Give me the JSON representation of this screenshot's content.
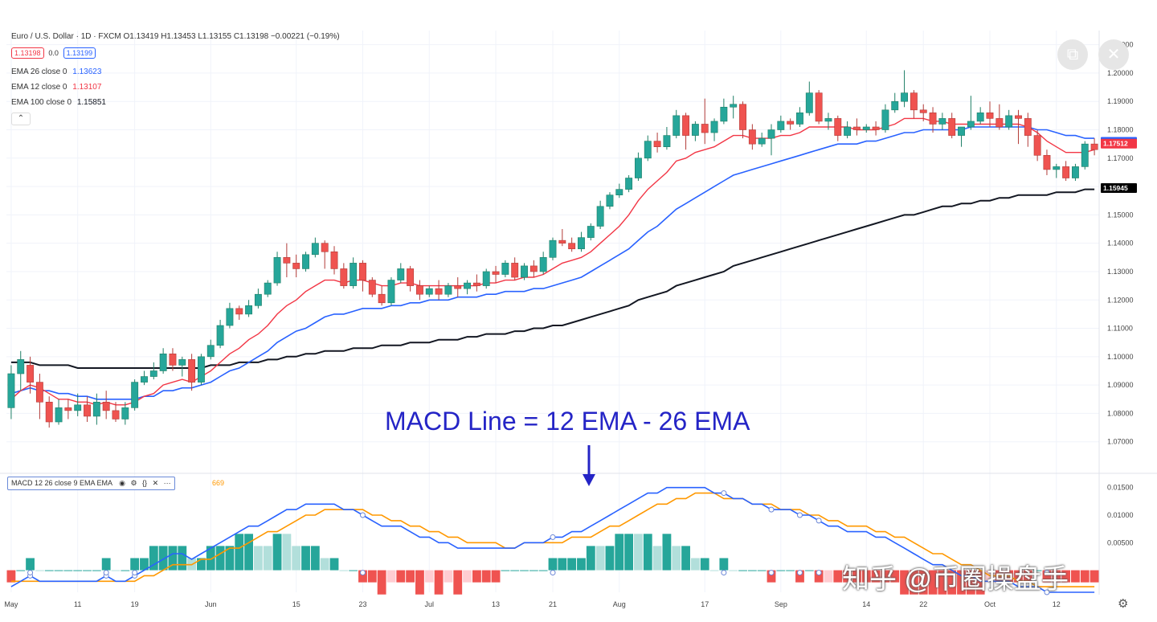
{
  "header": {
    "symbol": "Euro / U.S. Dollar · 1D · FXCM",
    "ohlc": "O1.13419 H1.13453 L1.13155 C1.13198 −0.00221 (−0.19%)",
    "bid": "1.13198",
    "spread": "0.0",
    "ask": "1.13199"
  },
  "indicators": [
    {
      "label": "EMA 26 close 0",
      "value": "1.13623",
      "color": "#2962ff"
    },
    {
      "label": "EMA 12 close 0",
      "value": "1.13107",
      "color": "#f23645"
    },
    {
      "label": "EMA 100 close 0",
      "value": "1.15851",
      "color": "#131722"
    }
  ],
  "collapse_icon": "chevron-up-icon",
  "macd_legend": {
    "label": "MACD 12 26 close 9 EMA EMA",
    "partial_value": "669",
    "icons": [
      "eye-icon",
      "gear-icon",
      "braces-icon",
      "close-icon",
      "more-icon"
    ]
  },
  "annotation": "MACD Line = 12 EMA - 26 EMA",
  "watermark": "知乎 @币圈操盘手",
  "controls": [
    "popout-icon",
    "close-icon"
  ],
  "chart_data": {
    "type": "candlestick",
    "price_axis": {
      "ticks": [
        "1.21000",
        "1.20000",
        "1.19000",
        "1.18000",
        "1.17000",
        "1.16000",
        "1.15000",
        "1.14000",
        "1.13000",
        "1.12000",
        "1.11000",
        "1.10000",
        "1.09000",
        "1.08000",
        "1.07000"
      ],
      "range": [
        1.06,
        1.215
      ]
    },
    "price_labels": [
      {
        "text": "1.17577",
        "value": 1.17577,
        "color": "#2962ff"
      },
      {
        "text": "1.17512",
        "value": 1.17512,
        "color": "#f23645"
      },
      {
        "text": "1.15945",
        "value": 1.15945,
        "color": "#000000"
      }
    ],
    "macd_axis": {
      "ticks": [
        "0.01500",
        "0.01000",
        "0.00500"
      ],
      "range": [
        -0.004,
        0.017
      ]
    },
    "x_labels": [
      "May",
      "11",
      "19",
      "Jun",
      "15",
      "23",
      "Jul",
      "13",
      "21",
      "Aug",
      "17",
      "Sep",
      "14",
      "22",
      "Oct",
      "12"
    ],
    "x_label_index": [
      0,
      7,
      13,
      21,
      30,
      37,
      44,
      51,
      57,
      64,
      73,
      81,
      90,
      96,
      103,
      110
    ],
    "candles": [
      [
        1.082,
        1.094,
        1.078,
        1.097
      ],
      [
        1.094,
        1.099,
        1.088,
        1.102
      ],
      [
        1.097,
        1.091,
        1.087,
        1.1
      ],
      [
        1.091,
        1.084,
        1.078,
        1.094
      ],
      [
        1.084,
        1.077,
        1.075,
        1.086
      ],
      [
        1.077,
        1.082,
        1.076,
        1.085
      ],
      [
        1.082,
        1.081,
        1.078,
        1.085
      ],
      [
        1.081,
        1.083,
        1.079,
        1.087
      ],
      [
        1.083,
        1.079,
        1.077,
        1.086
      ],
      [
        1.079,
        1.084,
        1.076,
        1.087
      ],
      [
        1.084,
        1.081,
        1.078,
        1.088
      ],
      [
        1.081,
        1.078,
        1.077,
        1.084
      ],
      [
        1.078,
        1.082,
        1.076,
        1.084
      ],
      [
        1.082,
        1.091,
        1.081,
        1.092
      ],
      [
        1.091,
        1.093,
        1.09,
        1.095
      ],
      [
        1.093,
        1.095,
        1.092,
        1.098
      ],
      [
        1.095,
        1.101,
        1.094,
        1.103
      ],
      [
        1.101,
        1.097,
        1.095,
        1.103
      ],
      [
        1.097,
        1.099,
        1.093,
        1.1
      ],
      [
        1.099,
        1.091,
        1.088,
        1.101
      ],
      [
        1.091,
        1.1,
        1.09,
        1.101
      ],
      [
        1.1,
        1.104,
        1.099,
        1.106
      ],
      [
        1.104,
        1.111,
        1.103,
        1.113
      ],
      [
        1.111,
        1.117,
        1.11,
        1.119
      ],
      [
        1.117,
        1.115,
        1.113,
        1.118
      ],
      [
        1.115,
        1.118,
        1.114,
        1.12
      ],
      [
        1.118,
        1.122,
        1.117,
        1.124
      ],
      [
        1.122,
        1.126,
        1.121,
        1.127
      ],
      [
        1.126,
        1.135,
        1.125,
        1.137
      ],
      [
        1.135,
        1.133,
        1.128,
        1.14
      ],
      [
        1.133,
        1.131,
        1.128,
        1.136
      ],
      [
        1.131,
        1.136,
        1.13,
        1.137
      ],
      [
        1.136,
        1.14,
        1.135,
        1.142
      ],
      [
        1.14,
        1.137,
        1.131,
        1.141
      ],
      [
        1.137,
        1.131,
        1.129,
        1.139
      ],
      [
        1.131,
        1.125,
        1.124,
        1.133
      ],
      [
        1.125,
        1.133,
        1.124,
        1.135
      ],
      [
        1.133,
        1.127,
        1.123,
        1.134
      ],
      [
        1.127,
        1.122,
        1.121,
        1.128
      ],
      [
        1.122,
        1.119,
        1.118,
        1.125
      ],
      [
        1.119,
        1.127,
        1.118,
        1.128
      ],
      [
        1.127,
        1.131,
        1.126,
        1.133
      ],
      [
        1.131,
        1.125,
        1.123,
        1.132
      ],
      [
        1.125,
        1.122,
        1.12,
        1.127
      ],
      [
        1.122,
        1.124,
        1.121,
        1.125
      ],
      [
        1.124,
        1.122,
        1.12,
        1.127
      ],
      [
        1.122,
        1.125,
        1.121,
        1.126
      ],
      [
        1.125,
        1.124,
        1.121,
        1.128
      ],
      [
        1.124,
        1.126,
        1.122,
        1.127
      ],
      [
        1.126,
        1.125,
        1.123,
        1.129
      ],
      [
        1.125,
        1.13,
        1.124,
        1.131
      ],
      [
        1.13,
        1.129,
        1.126,
        1.132
      ],
      [
        1.129,
        1.133,
        1.128,
        1.134
      ],
      [
        1.133,
        1.128,
        1.127,
        1.135
      ],
      [
        1.128,
        1.132,
        1.127,
        1.133
      ],
      [
        1.132,
        1.13,
        1.128,
        1.134
      ],
      [
        1.13,
        1.135,
        1.129,
        1.137
      ],
      [
        1.135,
        1.141,
        1.134,
        1.142
      ],
      [
        1.141,
        1.14,
        1.139,
        1.145
      ],
      [
        1.14,
        1.138,
        1.137,
        1.142
      ],
      [
        1.138,
        1.142,
        1.137,
        1.144
      ],
      [
        1.142,
        1.146,
        1.141,
        1.147
      ],
      [
        1.146,
        1.153,
        1.145,
        1.155
      ],
      [
        1.153,
        1.157,
        1.152,
        1.158
      ],
      [
        1.157,
        1.159,
        1.156,
        1.161
      ],
      [
        1.159,
        1.163,
        1.158,
        1.164
      ],
      [
        1.163,
        1.17,
        1.162,
        1.172
      ],
      [
        1.17,
        1.176,
        1.169,
        1.178
      ],
      [
        1.176,
        1.174,
        1.172,
        1.179
      ],
      [
        1.174,
        1.178,
        1.173,
        1.181
      ],
      [
        1.178,
        1.185,
        1.177,
        1.187
      ],
      [
        1.185,
        1.178,
        1.173,
        1.186
      ],
      [
        1.178,
        1.182,
        1.176,
        1.183
      ],
      [
        1.182,
        1.179,
        1.175,
        1.191
      ],
      [
        1.179,
        1.183,
        1.176,
        1.184
      ],
      [
        1.183,
        1.188,
        1.182,
        1.191
      ],
      [
        1.188,
        1.189,
        1.184,
        1.192
      ],
      [
        1.189,
        1.18,
        1.177,
        1.19
      ],
      [
        1.18,
        1.175,
        1.173,
        1.182
      ],
      [
        1.175,
        1.177,
        1.174,
        1.179
      ],
      [
        1.177,
        1.18,
        1.171,
        1.182
      ],
      [
        1.18,
        1.183,
        1.179,
        1.185
      ],
      [
        1.183,
        1.182,
        1.18,
        1.184
      ],
      [
        1.182,
        1.186,
        1.181,
        1.188
      ],
      [
        1.186,
        1.193,
        1.185,
        1.197
      ],
      [
        1.193,
        1.183,
        1.182,
        1.194
      ],
      [
        1.183,
        1.184,
        1.18,
        1.186
      ],
      [
        1.184,
        1.178,
        1.176,
        1.185
      ],
      [
        1.178,
        1.181,
        1.177,
        1.183
      ],
      [
        1.181,
        1.18,
        1.178,
        1.184
      ],
      [
        1.18,
        1.181,
        1.179,
        1.182
      ],
      [
        1.181,
        1.18,
        1.178,
        1.183
      ],
      [
        1.18,
        1.187,
        1.179,
        1.189
      ],
      [
        1.187,
        1.19,
        1.186,
        1.193
      ],
      [
        1.19,
        1.193,
        1.188,
        1.201
      ],
      [
        1.193,
        1.187,
        1.184,
        1.194
      ],
      [
        1.187,
        1.186,
        1.183,
        1.189
      ],
      [
        1.186,
        1.182,
        1.179,
        1.188
      ],
      [
        1.182,
        1.184,
        1.18,
        1.186
      ],
      [
        1.184,
        1.178,
        1.177,
        1.186
      ],
      [
        1.178,
        1.181,
        1.174,
        1.181
      ],
      [
        1.181,
        1.183,
        1.18,
        1.192
      ],
      [
        1.183,
        1.186,
        1.182,
        1.188
      ],
      [
        1.186,
        1.184,
        1.181,
        1.19
      ],
      [
        1.184,
        1.181,
        1.18,
        1.189
      ],
      [
        1.181,
        1.185,
        1.18,
        1.187
      ],
      [
        1.185,
        1.184,
        1.175,
        1.187
      ],
      [
        1.184,
        1.178,
        1.174,
        1.186
      ],
      [
        1.178,
        1.171,
        1.169,
        1.18
      ],
      [
        1.171,
        1.166,
        1.164,
        1.173
      ],
      [
        1.166,
        1.167,
        1.163,
        1.168
      ],
      [
        1.167,
        1.163,
        1.162,
        1.169
      ],
      [
        1.163,
        1.167,
        1.162,
        1.168
      ],
      [
        1.167,
        1.175,
        1.166,
        1.176
      ],
      [
        1.175,
        1.173,
        1.171,
        1.177
      ]
    ],
    "ema12": [
      1.085,
      1.088,
      1.09,
      1.089,
      1.087,
      1.085,
      1.085,
      1.084,
      1.084,
      1.083,
      1.084,
      1.083,
      1.083,
      1.084,
      1.086,
      1.087,
      1.09,
      1.091,
      1.092,
      1.091,
      1.093,
      1.095,
      1.098,
      1.101,
      1.103,
      1.106,
      1.108,
      1.111,
      1.115,
      1.118,
      1.12,
      1.123,
      1.125,
      1.127,
      1.127,
      1.126,
      1.127,
      1.127,
      1.126,
      1.125,
      1.125,
      1.126,
      1.126,
      1.125,
      1.125,
      1.125,
      1.125,
      1.125,
      1.125,
      1.125,
      1.126,
      1.126,
      1.127,
      1.127,
      1.128,
      1.128,
      1.129,
      1.131,
      1.133,
      1.134,
      1.135,
      1.137,
      1.14,
      1.143,
      1.146,
      1.15,
      1.155,
      1.159,
      1.162,
      1.165,
      1.169,
      1.17,
      1.172,
      1.173,
      1.174,
      1.176,
      1.178,
      1.178,
      1.177,
      1.177,
      1.177,
      1.178,
      1.178,
      1.179,
      1.181,
      1.181,
      1.181,
      1.181,
      1.181,
      1.18,
      1.18,
      1.18,
      1.181,
      1.182,
      1.184,
      1.184,
      1.184,
      1.183,
      1.183,
      1.182,
      1.182,
      1.182,
      1.182,
      1.182,
      1.182,
      1.182,
      1.182,
      1.181,
      1.179,
      1.176,
      1.174,
      1.172,
      1.172,
      1.172,
      1.173
    ],
    "ema26": [
      1.087,
      1.088,
      1.089,
      1.088,
      1.088,
      1.087,
      1.087,
      1.086,
      1.086,
      1.085,
      1.085,
      1.085,
      1.085,
      1.085,
      1.086,
      1.086,
      1.088,
      1.088,
      1.089,
      1.089,
      1.09,
      1.091,
      1.093,
      1.095,
      1.096,
      1.098,
      1.1,
      1.102,
      1.105,
      1.107,
      1.109,
      1.11,
      1.112,
      1.114,
      1.115,
      1.115,
      1.116,
      1.117,
      1.117,
      1.117,
      1.118,
      1.118,
      1.119,
      1.119,
      1.12,
      1.12,
      1.12,
      1.121,
      1.121,
      1.121,
      1.122,
      1.122,
      1.123,
      1.123,
      1.123,
      1.124,
      1.124,
      1.125,
      1.126,
      1.127,
      1.128,
      1.13,
      1.132,
      1.134,
      1.136,
      1.138,
      1.141,
      1.144,
      1.146,
      1.149,
      1.152,
      1.154,
      1.156,
      1.158,
      1.16,
      1.162,
      1.164,
      1.165,
      1.166,
      1.167,
      1.168,
      1.169,
      1.17,
      1.171,
      1.172,
      1.173,
      1.174,
      1.175,
      1.175,
      1.175,
      1.176,
      1.176,
      1.177,
      1.178,
      1.179,
      1.179,
      1.18,
      1.18,
      1.18,
      1.18,
      1.18,
      1.181,
      1.181,
      1.181,
      1.181,
      1.181,
      1.181,
      1.181,
      1.18,
      1.18,
      1.179,
      1.178,
      1.178,
      1.177,
      1.177
    ],
    "ema100": [
      1.098,
      1.098,
      1.098,
      1.097,
      1.097,
      1.097,
      1.097,
      1.096,
      1.096,
      1.096,
      1.096,
      1.096,
      1.096,
      1.096,
      1.096,
      1.096,
      1.096,
      1.096,
      1.096,
      1.096,
      1.096,
      1.097,
      1.097,
      1.097,
      1.098,
      1.098,
      1.098,
      1.099,
      1.099,
      1.1,
      1.1,
      1.101,
      1.101,
      1.102,
      1.102,
      1.102,
      1.103,
      1.103,
      1.103,
      1.104,
      1.104,
      1.104,
      1.105,
      1.105,
      1.105,
      1.106,
      1.106,
      1.106,
      1.107,
      1.107,
      1.108,
      1.108,
      1.108,
      1.109,
      1.109,
      1.11,
      1.11,
      1.111,
      1.111,
      1.112,
      1.113,
      1.114,
      1.115,
      1.116,
      1.117,
      1.118,
      1.12,
      1.121,
      1.122,
      1.123,
      1.125,
      1.126,
      1.127,
      1.128,
      1.129,
      1.13,
      1.132,
      1.133,
      1.134,
      1.135,
      1.136,
      1.137,
      1.138,
      1.139,
      1.14,
      1.141,
      1.142,
      1.143,
      1.144,
      1.145,
      1.146,
      1.147,
      1.148,
      1.149,
      1.15,
      1.15,
      1.151,
      1.152,
      1.153,
      1.153,
      1.154,
      1.154,
      1.155,
      1.155,
      1.156,
      1.156,
      1.157,
      1.157,
      1.157,
      1.157,
      1.158,
      1.158,
      1.158,
      1.159,
      1.159
    ],
    "macd": [
      -0.003,
      -0.002,
      -0.001,
      -0.002,
      -0.002,
      -0.002,
      -0.002,
      -0.002,
      -0.002,
      -0.002,
      -0.001,
      -0.002,
      -0.002,
      -0.001,
      0.0,
      0.001,
      0.002,
      0.003,
      0.003,
      0.002,
      0.003,
      0.004,
      0.005,
      0.006,
      0.007,
      0.008,
      0.008,
      0.009,
      0.01,
      0.011,
      0.011,
      0.012,
      0.012,
      0.012,
      0.012,
      0.011,
      0.011,
      0.01,
      0.009,
      0.008,
      0.008,
      0.008,
      0.007,
      0.006,
      0.006,
      0.005,
      0.005,
      0.004,
      0.004,
      0.004,
      0.004,
      0.004,
      0.004,
      0.004,
      0.005,
      0.005,
      0.005,
      0.006,
      0.006,
      0.007,
      0.007,
      0.008,
      0.009,
      0.01,
      0.011,
      0.012,
      0.013,
      0.014,
      0.014,
      0.015,
      0.015,
      0.015,
      0.015,
      0.015,
      0.014,
      0.014,
      0.013,
      0.013,
      0.012,
      0.012,
      0.011,
      0.011,
      0.011,
      0.01,
      0.01,
      0.009,
      0.008,
      0.008,
      0.007,
      0.007,
      0.007,
      0.006,
      0.006,
      0.005,
      0.004,
      0.003,
      0.002,
      0.001,
      0.001,
      0.0,
      -0.001,
      -0.001,
      -0.002,
      -0.002,
      -0.002,
      -0.002,
      -0.003,
      -0.003,
      -0.003,
      -0.004,
      -0.004,
      -0.004,
      -0.004,
      -0.004,
      -0.004
    ],
    "signal": [
      -0.002,
      -0.002,
      -0.002,
      -0.002,
      -0.002,
      -0.002,
      -0.002,
      -0.002,
      -0.002,
      -0.002,
      -0.002,
      -0.002,
      -0.002,
      -0.002,
      -0.001,
      -0.001,
      0.0,
      0.001,
      0.001,
      0.001,
      0.002,
      0.002,
      0.003,
      0.004,
      0.004,
      0.005,
      0.006,
      0.007,
      0.007,
      0.008,
      0.009,
      0.01,
      0.01,
      0.011,
      0.011,
      0.011,
      0.011,
      0.011,
      0.01,
      0.01,
      0.009,
      0.009,
      0.008,
      0.008,
      0.007,
      0.007,
      0.006,
      0.006,
      0.005,
      0.005,
      0.005,
      0.005,
      0.004,
      0.004,
      0.005,
      0.005,
      0.005,
      0.005,
      0.005,
      0.006,
      0.006,
      0.006,
      0.007,
      0.008,
      0.008,
      0.009,
      0.01,
      0.011,
      0.012,
      0.012,
      0.013,
      0.013,
      0.014,
      0.014,
      0.014,
      0.013,
      0.013,
      0.013,
      0.012,
      0.012,
      0.012,
      0.011,
      0.011,
      0.011,
      0.01,
      0.01,
      0.009,
      0.009,
      0.008,
      0.008,
      0.008,
      0.007,
      0.007,
      0.006,
      0.006,
      0.005,
      0.004,
      0.003,
      0.003,
      0.002,
      0.001,
      0.001,
      0.0,
      -0.001,
      -0.001,
      -0.001,
      -0.002,
      -0.002,
      -0.003,
      -0.003,
      -0.003,
      -0.003,
      -0.003,
      -0.003,
      -0.003
    ],
    "grid": true
  }
}
